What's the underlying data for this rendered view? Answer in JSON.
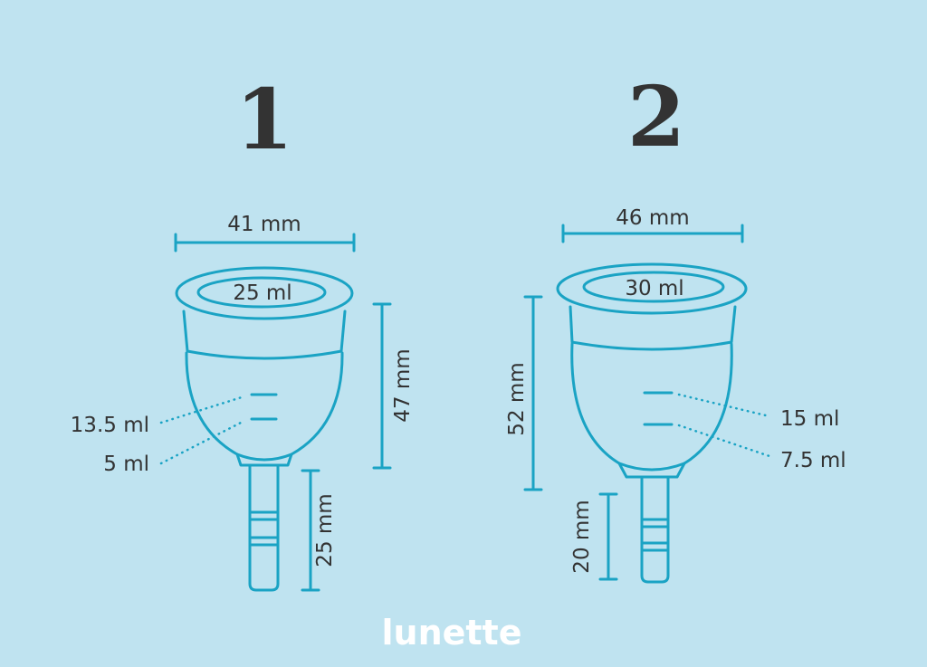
{
  "colors": {
    "background": "#bfe3f0",
    "outline": "#1aa3c4",
    "text": "#333333",
    "logo": "#ffffff"
  },
  "cups": [
    {
      "number": "1",
      "width_label": "41 mm",
      "capacity_label": "25 ml",
      "height_label": "47 mm",
      "stem_label": "25 mm",
      "marks": [
        "13.5 ml",
        "5 ml"
      ]
    },
    {
      "number": "2",
      "width_label": "46 mm",
      "capacity_label": "30 ml",
      "height_label": "52 mm",
      "stem_label": "20 mm",
      "marks": [
        "15 ml",
        "7.5 ml"
      ]
    }
  ],
  "brand": "lunette"
}
